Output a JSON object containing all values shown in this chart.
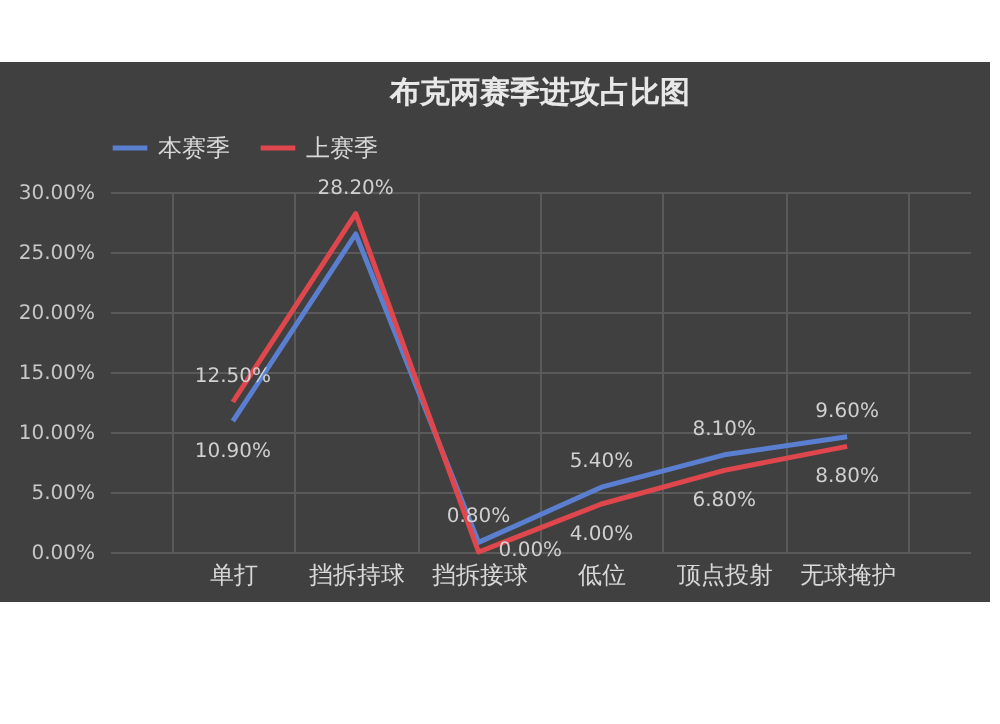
{
  "chart_data": {
    "type": "line",
    "title": "布克两赛季进攻占比图",
    "categories": [
      "单打",
      "挡拆持球",
      "挡拆接球",
      "低位",
      "顶点投射",
      "无球掩护"
    ],
    "series": [
      {
        "name": "本赛季",
        "color": "#5b7fd0",
        "values": [
          10.9,
          26.5,
          0.8,
          5.4,
          8.1,
          9.6
        ],
        "value_labels": [
          "10.90%",
          null,
          "0.80%",
          "5.40%",
          "8.10%",
          "9.60%"
        ]
      },
      {
        "name": "上赛季",
        "color": "#e0474c",
        "values": [
          12.5,
          28.2,
          0.0,
          4.0,
          6.8,
          8.8
        ],
        "value_labels": [
          "12.50%",
          "28.20%",
          "0.00%",
          "4.00%",
          "6.80%",
          "8.80%"
        ]
      }
    ],
    "ylim": [
      0,
      30
    ],
    "yticks": [
      {
        "value": 0,
        "label": "0.00%"
      },
      {
        "value": 5,
        "label": "5.00%"
      },
      {
        "value": 10,
        "label": "10.00%"
      },
      {
        "value": 15,
        "label": "15.00%"
      },
      {
        "value": 20,
        "label": "20.00%"
      },
      {
        "value": 25,
        "label": "25.00%"
      },
      {
        "value": 30,
        "label": "30.00%"
      }
    ],
    "grid": true,
    "legend": "top",
    "marker": "none",
    "line_style": "solid"
  }
}
